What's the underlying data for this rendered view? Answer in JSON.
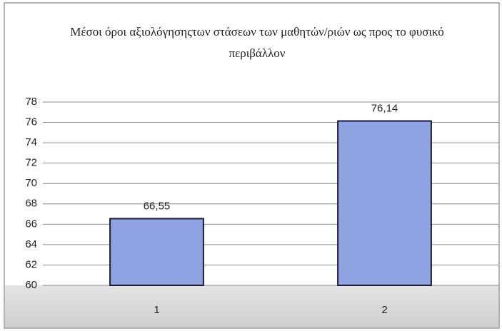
{
  "chart_data": {
    "type": "bar",
    "title": "Μέσοι όροι αξιολόγησηςτων στάσεων των μαθητών/ριών ως προς το φυσικό περιβάλλον",
    "categories": [
      "1",
      "2"
    ],
    "values": [
      66.55,
      76.14
    ],
    "value_labels": [
      "66,55",
      "76,14"
    ],
    "color": "#8fa2e2",
    "ylim": [
      60,
      78
    ],
    "yticks": [
      60,
      62,
      64,
      66,
      68,
      70,
      72,
      74,
      76,
      78
    ],
    "grid": true
  }
}
